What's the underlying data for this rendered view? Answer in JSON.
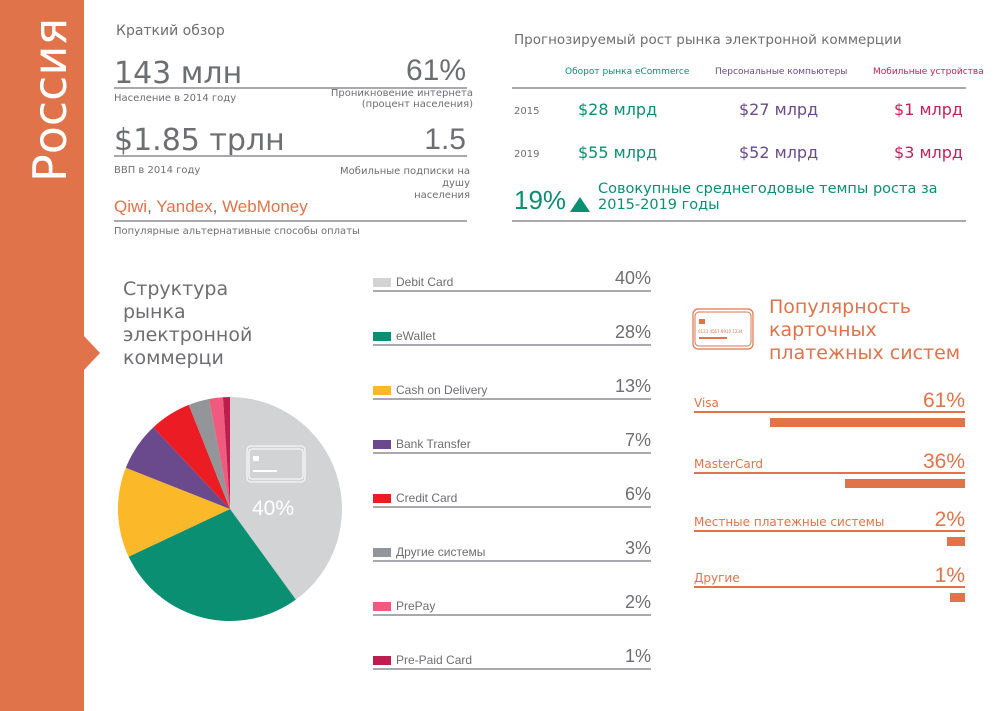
{
  "sidebar": {
    "country": "Россия"
  },
  "overview": {
    "title": "Краткий обзор",
    "population": {
      "value": "143 млн",
      "label": "Население в 2014 году"
    },
    "internet": {
      "value": "61%",
      "label1": "Проникновение интернета",
      "label2": "(процент населения)"
    },
    "gdp": {
      "value": "$1.85 трлн",
      "label": "ВВП в 2014 году"
    },
    "mobile": {
      "value": "1.5",
      "label1": "Мобильные подписки на",
      "label2": "душу",
      "label3": "населения"
    },
    "payments": {
      "items": [
        "Qiwi",
        ", ",
        "Yandex",
        ", ",
        "WebMoney"
      ],
      "label": "Популярные альтернативные способы оплаты"
    }
  },
  "growth": {
    "title": "Прогнозируемый рост рынка электронной коммерции",
    "headers": [
      "Оборот рынка eCommerce",
      "Персональные компьютеры",
      "Мобильные устройства"
    ],
    "rows": [
      {
        "year": "2015",
        "values": [
          "$28 млрд",
          "$27 млрд",
          "$1 млрд"
        ]
      },
      {
        "year": "2019",
        "values": [
          "$55 млрд",
          "$52 млрд",
          "$3 млрд"
        ]
      }
    ],
    "cagr": "19%",
    "cagr_label1": "Совокупные среднегодовые темпы роста за",
    "cagr_label2": "2015-2019 годы"
  },
  "chart_data": [
    {
      "type": "pie",
      "title": "Структура рынка электронной коммерци",
      "title_lines": [
        "Структура",
        "рынка",
        "электронной",
        "коммерци"
      ],
      "categories": [
        "Debit Card",
        "eWallet",
        "Cash on Delivery",
        "Bank Transfer",
        "Credit Card",
        "Другие системы",
        "PrePay",
        "Pre-Paid Card"
      ],
      "values": [
        40,
        28,
        13,
        7,
        6,
        3,
        2,
        1
      ],
      "labels": [
        "40%",
        "28%",
        "13%",
        "7%",
        "6%",
        "3%",
        "2%",
        "1%"
      ],
      "colors": [
        "#D1D3D4",
        "#0A8F73",
        "#FBB829",
        "#6A4A8C",
        "#EC1C24",
        "#939598",
        "#F05A7E",
        "#BE1E4F"
      ],
      "slice_label": "40%"
    },
    {
      "type": "bar",
      "title_lines": [
        "Популярность",
        "карточных",
        "платежных систем"
      ],
      "categories": [
        "Visa",
        "MasterCard",
        "Местные платежные системы",
        "Другие"
      ],
      "values": [
        61,
        36,
        2,
        1
      ],
      "labels": [
        "61%",
        "36%",
        "2%",
        "1%"
      ],
      "color": "#E0734A"
    }
  ]
}
